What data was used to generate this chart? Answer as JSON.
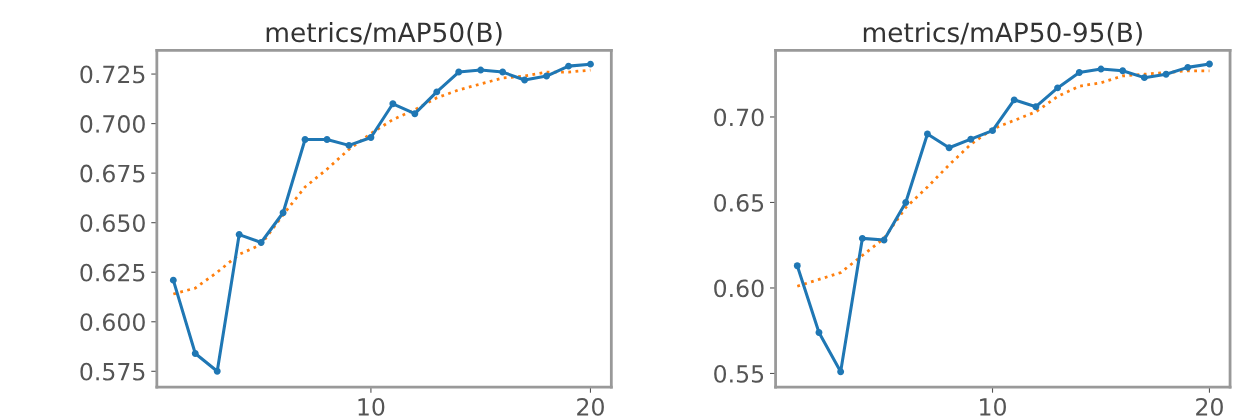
{
  "chart_data": [
    {
      "type": "line",
      "title": "metrics/mAP50(B)",
      "x": [
        1,
        2,
        3,
        4,
        5,
        6,
        7,
        8,
        9,
        10,
        11,
        12,
        13,
        14,
        15,
        16,
        17,
        18,
        19,
        20
      ],
      "xlim": [
        0.25,
        20.95
      ],
      "xticks": [
        10,
        20
      ],
      "ylim": [
        0.567,
        0.737
      ],
      "yticks": [
        0.575,
        {
          "value": 0.6,
          "label": "0.600"
        },
        0.625,
        {
          "value": 0.65,
          "label": "0.650"
        },
        0.675,
        {
          "value": 0.7,
          "label": "0.700"
        },
        0.725
      ],
      "series": [
        {
          "color": "#1f77b4",
          "marker": "circle",
          "line_style": "solid",
          "values": [
            0.621,
            0.584,
            0.575,
            0.644,
            0.64,
            0.655,
            0.692,
            0.692,
            0.689,
            0.693,
            0.71,
            0.705,
            0.716,
            0.726,
            0.727,
            0.726,
            0.722,
            0.724,
            0.729,
            0.73
          ]
        },
        {
          "color": "#ff7f0e",
          "marker": "none",
          "line_style": "dotted",
          "values": [
            0.614,
            0.617,
            0.625,
            0.634,
            0.639,
            0.654,
            0.668,
            0.677,
            0.687,
            0.695,
            0.702,
            0.707,
            0.713,
            0.717,
            0.72,
            0.723,
            0.724,
            0.726,
            0.726,
            0.727
          ]
        }
      ]
    },
    {
      "type": "line",
      "title": "metrics/mAP50-95(B)",
      "x": [
        1,
        2,
        3,
        4,
        5,
        6,
        7,
        8,
        9,
        10,
        11,
        12,
        13,
        14,
        15,
        16,
        17,
        18,
        19,
        20
      ],
      "xlim": [
        0,
        20.95
      ],
      "xticks": [
        10,
        20
      ],
      "ylim": [
        0.542,
        0.739
      ],
      "yticks": [
        0.55,
        {
          "value": 0.6,
          "label": "0.60"
        },
        0.65,
        {
          "value": 0.7,
          "label": "0.70"
        }
      ],
      "series": [
        {
          "color": "#1f77b4",
          "marker": "circle",
          "line_style": "solid",
          "values": [
            0.613,
            0.574,
            0.551,
            0.629,
            0.628,
            0.65,
            0.69,
            0.682,
            0.687,
            0.692,
            0.71,
            0.706,
            0.717,
            0.726,
            0.728,
            0.727,
            0.723,
            0.725,
            0.729,
            0.731
          ]
        },
        {
          "color": "#ff7f0e",
          "marker": "none",
          "line_style": "dotted",
          "values": [
            0.601,
            0.605,
            0.609,
            0.619,
            0.629,
            0.647,
            0.659,
            0.672,
            0.684,
            0.693,
            0.698,
            0.703,
            0.712,
            0.718,
            0.72,
            0.724,
            0.725,
            0.726,
            0.727,
            0.727
          ]
        }
      ]
    }
  ]
}
